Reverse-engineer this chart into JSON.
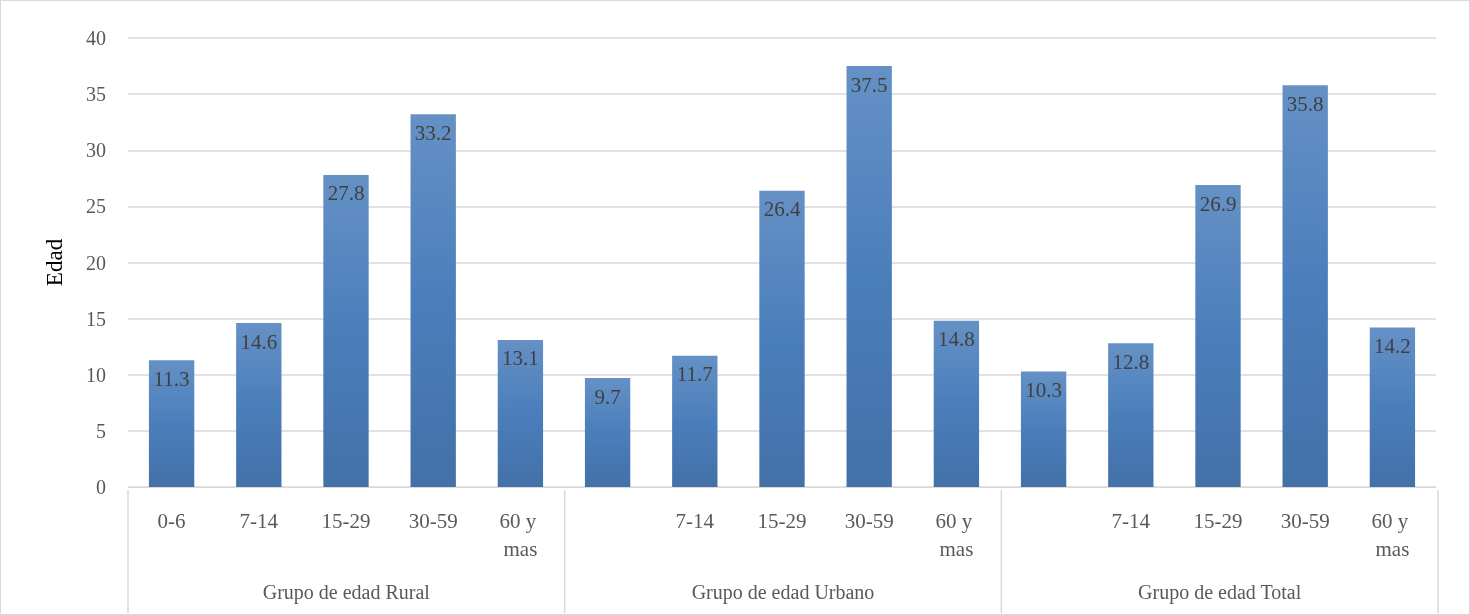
{
  "chart_data": {
    "type": "bar",
    "ylabel": "Edad",
    "categories": [
      "0-6",
      "7-14",
      "15-29",
      "30-59",
      "60 y mas",
      null,
      "7-14",
      "15-29",
      "30-59",
      "60 y mas",
      null,
      "7-14",
      "15-29",
      "30-59",
      "60 y mas"
    ],
    "values": [
      11.3,
      14.6,
      27.8,
      33.2,
      13.1,
      9.7,
      11.7,
      26.4,
      37.5,
      14.8,
      10.3,
      12.8,
      26.9,
      35.8,
      14.2
    ],
    "color": "#4a7ebb",
    "ylim": [
      0,
      40
    ],
    "yticks": [
      0,
      5,
      10,
      15,
      20,
      25,
      30,
      35,
      40
    ],
    "grid": "y",
    "data_labels": true,
    "annotations": [
      "Grupo de edad Rural",
      "Grupo de edad Urbano",
      "Grupo de edad Total"
    ]
  }
}
